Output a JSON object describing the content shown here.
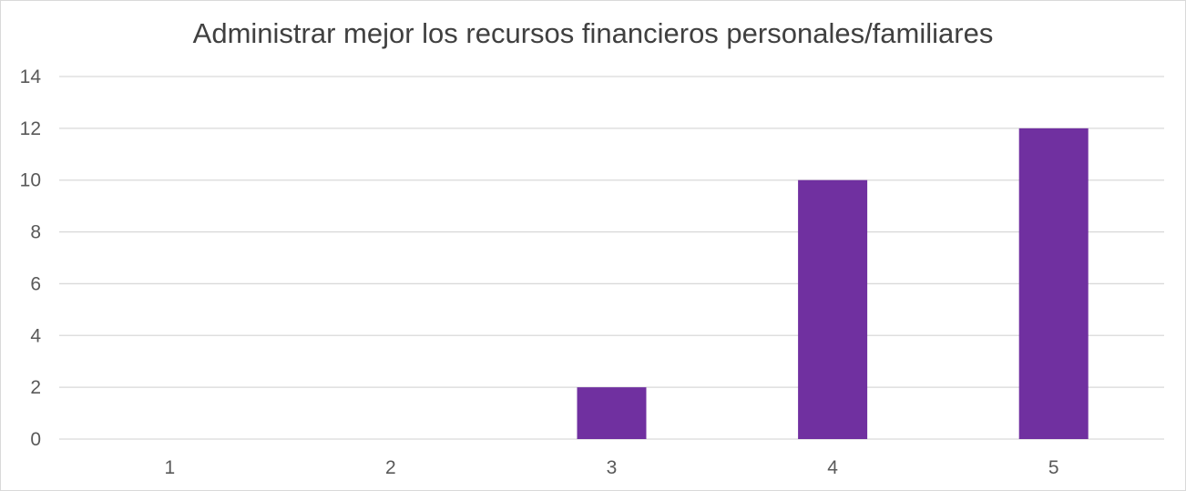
{
  "chart_data": {
    "type": "bar",
    "title": "Administrar mejor los recursos financieros personales/familiares",
    "categories": [
      "1",
      "2",
      "3",
      "4",
      "5"
    ],
    "values": [
      0,
      0,
      2,
      10,
      12
    ],
    "ylim": [
      0,
      14
    ],
    "yticks": [
      "0",
      "2",
      "4",
      "6",
      "8",
      "10",
      "12",
      "14"
    ],
    "xlabel": "",
    "ylabel": "",
    "grid": true,
    "legend": "none",
    "bar_color": "#7030A0",
    "grid_color": "#d9d9d9",
    "text_color": "#595959"
  }
}
